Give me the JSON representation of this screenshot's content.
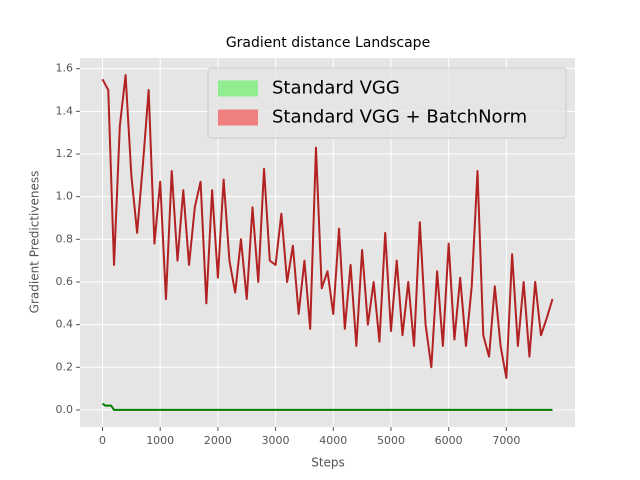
{
  "chart_data": {
    "type": "line",
    "title": "Gradient distance Landscape",
    "x_label": "Steps",
    "y_label": "Gradient Predictiveness",
    "xlim": [
      -390,
      8190
    ],
    "ylim": [
      -0.08,
      1.65
    ],
    "xticks": [
      0,
      1000,
      2000,
      3000,
      4000,
      5000,
      6000,
      7000
    ],
    "yticks": [
      {
        "value": 0,
        "label": "0.0"
      },
      0.2,
      0.4,
      0.6,
      0.8,
      {
        "value": 1,
        "label": "1.0"
      },
      1.2,
      1.4,
      1.6
    ],
    "grid": true,
    "legend_loc": "upper right",
    "series": [
      {
        "name": "Standard VGG",
        "color": "#008000",
        "legend_color": "#90ee90",
        "x": [
          0,
          50,
          100,
          150,
          200,
          7800
        ],
        "values": [
          0.03,
          0.02,
          0.02,
          0.02,
          0,
          0
        ]
      },
      {
        "name": "Standard VGG + BatchNorm",
        "color": "#b22222",
        "legend_color": "#f08080",
        "x": [
          0,
          100,
          200,
          300,
          400,
          500,
          600,
          700,
          800,
          900,
          1000,
          1100,
          1200,
          1300,
          1400,
          1500,
          1600,
          1700,
          1800,
          1900,
          2000,
          2100,
          2200,
          2300,
          2400,
          2500,
          2600,
          2700,
          2800,
          2900,
          3000,
          3100,
          3200,
          3300,
          3400,
          3500,
          3600,
          3700,
          3800,
          3900,
          4000,
          4100,
          4200,
          4300,
          4400,
          4500,
          4600,
          4700,
          4800,
          4900,
          5000,
          5100,
          5200,
          5300,
          5400,
          5500,
          5600,
          5700,
          5800,
          5900,
          6000,
          6100,
          6200,
          6300,
          6400,
          6500,
          6600,
          6700,
          6800,
          6900,
          7000,
          7100,
          7200,
          7300,
          7400,
          7500,
          7600,
          7700,
          7800
        ],
        "values": [
          1.55,
          1.5,
          0.68,
          1.33,
          1.57,
          1.1,
          0.83,
          1.15,
          1.5,
          0.78,
          1.07,
          0.52,
          1.12,
          0.7,
          1.03,
          0.68,
          0.95,
          1.07,
          0.5,
          1.03,
          0.62,
          1.08,
          0.7,
          0.55,
          0.8,
          0.52,
          0.95,
          0.6,
          1.13,
          0.7,
          0.68,
          0.92,
          0.6,
          0.77,
          0.45,
          0.7,
          0.38,
          1.23,
          0.57,
          0.65,
          0.45,
          0.85,
          0.38,
          0.68,
          0.3,
          0.75,
          0.4,
          0.6,
          0.32,
          0.83,
          0.37,
          0.7,
          0.35,
          0.6,
          0.3,
          0.88,
          0.4,
          0.2,
          0.65,
          0.3,
          0.78,
          0.33,
          0.62,
          0.3,
          0.58,
          1.12,
          0.35,
          0.25,
          0.58,
          0.3,
          0.15,
          0.73,
          0.3,
          0.6,
          0.25,
          0.6,
          0.35,
          0.43,
          0.52
        ]
      }
    ]
  }
}
